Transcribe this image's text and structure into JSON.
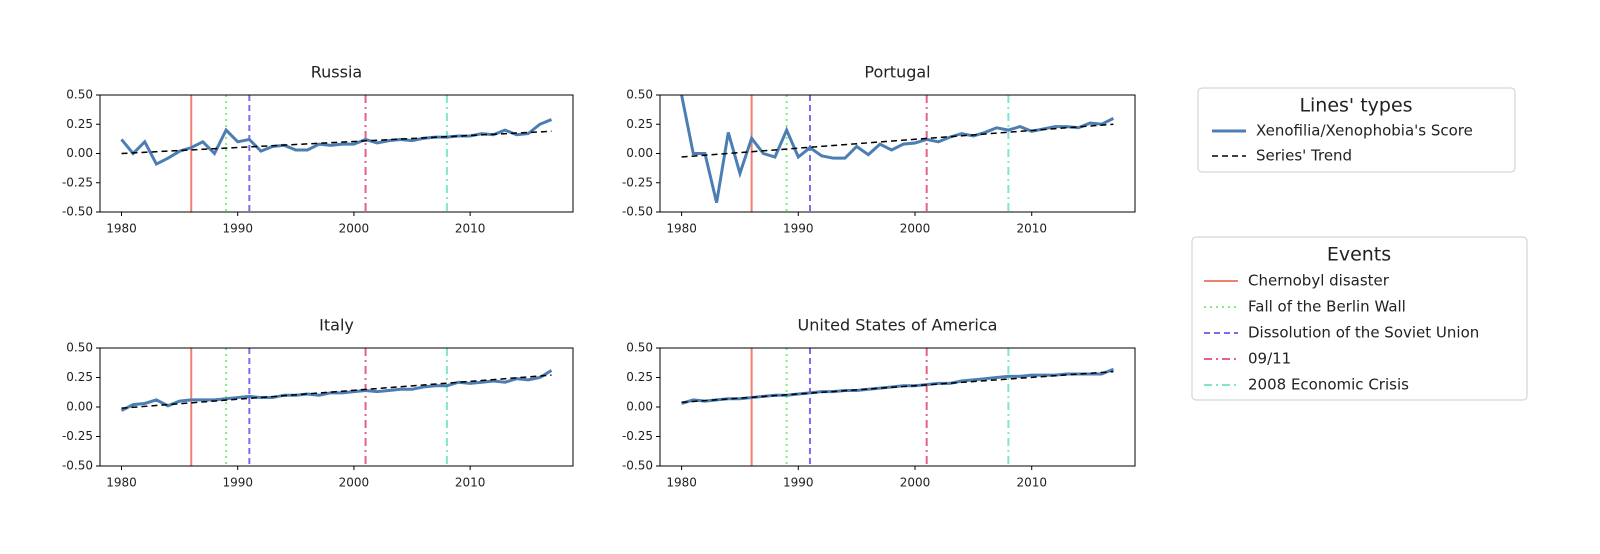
{
  "chart_data": [
    {
      "type": "line",
      "title": "Russia",
      "x": [
        1980,
        1981,
        1982,
        1983,
        1984,
        1985,
        1986,
        1987,
        1988,
        1989,
        1990,
        1991,
        1992,
        1993,
        1994,
        1995,
        1996,
        1997,
        1998,
        1999,
        2000,
        2001,
        2002,
        2003,
        2004,
        2005,
        2006,
        2007,
        2008,
        2009,
        2010,
        2011,
        2012,
        2013,
        2014,
        2015,
        2016,
        2017
      ],
      "series": [
        {
          "name": "Xenofilia/Xenophobia's Score",
          "color": "#4c7eb3",
          "dash": "solid",
          "values": [
            0.12,
            0.0,
            0.1,
            -0.09,
            -0.04,
            0.02,
            0.05,
            0.1,
            0.0,
            0.2,
            0.1,
            0.12,
            0.02,
            0.06,
            0.07,
            0.03,
            0.03,
            0.08,
            0.07,
            0.08,
            0.08,
            0.12,
            0.09,
            0.11,
            0.12,
            0.11,
            0.13,
            0.14,
            0.14,
            0.15,
            0.15,
            0.17,
            0.16,
            0.2,
            0.16,
            0.17,
            0.25,
            0.29
          ]
        },
        {
          "name": "Series' Trend",
          "color": "#000000",
          "dash": "dashed",
          "x": [
            1980,
            2017
          ],
          "values": [
            0.0,
            0.19
          ]
        }
      ],
      "xlim": [
        1978.15,
        2018.85
      ],
      "ylim": [
        -0.5,
        0.5
      ],
      "xticks": [
        1980,
        1990,
        2000,
        2010
      ],
      "yticks": [
        {
          "value": -0.5,
          "label": "-0.50"
        },
        {
          "value": -0.25,
          "label": "-0.25"
        },
        {
          "value": 0,
          "label": "0.00"
        },
        {
          "value": 0.25,
          "label": "0.25"
        },
        {
          "value": 0.5,
          "label": "0.50"
        }
      ]
    },
    {
      "type": "line",
      "title": "Portugal",
      "x": [
        1980,
        1981,
        1982,
        1983,
        1984,
        1985,
        1986,
        1987,
        1988,
        1989,
        1990,
        1991,
        1992,
        1993,
        1994,
        1995,
        1996,
        1997,
        1998,
        1999,
        2000,
        2001,
        2002,
        2003,
        2004,
        2005,
        2006,
        2007,
        2008,
        2009,
        2010,
        2011,
        2012,
        2013,
        2014,
        2015,
        2016,
        2017
      ],
      "series": [
        {
          "name": "Xenofilia/Xenophobia's Score",
          "color": "#4c7eb3",
          "dash": "solid",
          "values": [
            0.5,
            0.0,
            0.0,
            -0.42,
            0.18,
            -0.17,
            0.13,
            0.0,
            -0.03,
            0.2,
            -0.03,
            0.05,
            -0.02,
            -0.04,
            -0.04,
            0.06,
            -0.01,
            0.08,
            0.03,
            0.08,
            0.09,
            0.12,
            0.1,
            0.14,
            0.17,
            0.15,
            0.18,
            0.22,
            0.2,
            0.23,
            0.19,
            0.21,
            0.23,
            0.23,
            0.22,
            0.26,
            0.25,
            0.3
          ]
        },
        {
          "name": "Series' Trend",
          "color": "#000000",
          "dash": "dashed",
          "x": [
            1980,
            2017
          ],
          "values": [
            -0.03,
            0.25
          ]
        }
      ],
      "xlim": [
        1978.15,
        2018.85
      ],
      "ylim": [
        -0.5,
        0.5
      ],
      "xticks": [
        1980,
        1990,
        2000,
        2010
      ],
      "yticks": [
        {
          "value": -0.5,
          "label": "-0.50"
        },
        {
          "value": -0.25,
          "label": "-0.25"
        },
        {
          "value": 0,
          "label": "0.00"
        },
        {
          "value": 0.25,
          "label": "0.25"
        },
        {
          "value": 0.5,
          "label": "0.50"
        }
      ]
    },
    {
      "type": "line",
      "title": "Italy",
      "x": [
        1980,
        1981,
        1982,
        1983,
        1984,
        1985,
        1986,
        1987,
        1988,
        1989,
        1990,
        1991,
        1992,
        1993,
        1994,
        1995,
        1996,
        1997,
        1998,
        1999,
        2000,
        2001,
        2002,
        2003,
        2004,
        2005,
        2006,
        2007,
        2008,
        2009,
        2010,
        2011,
        2012,
        2013,
        2014,
        2015,
        2016,
        2017
      ],
      "series": [
        {
          "name": "Xenofilia/Xenophobia's Score",
          "color": "#4c7eb3",
          "dash": "solid",
          "values": [
            -0.03,
            0.02,
            0.03,
            0.06,
            0.01,
            0.05,
            0.06,
            0.06,
            0.06,
            0.07,
            0.08,
            0.09,
            0.08,
            0.08,
            0.1,
            0.1,
            0.11,
            0.1,
            0.12,
            0.12,
            0.13,
            0.14,
            0.13,
            0.14,
            0.15,
            0.15,
            0.17,
            0.18,
            0.18,
            0.21,
            0.2,
            0.21,
            0.22,
            0.21,
            0.24,
            0.23,
            0.25,
            0.31
          ]
        },
        {
          "name": "Series' Trend",
          "color": "#000000",
          "dash": "dashed",
          "x": [
            1980,
            2017
          ],
          "values": [
            -0.01,
            0.27
          ]
        }
      ],
      "xlim": [
        1978.15,
        2018.85
      ],
      "ylim": [
        -0.5,
        0.5
      ],
      "xticks": [
        1980,
        1990,
        2000,
        2010
      ],
      "yticks": [
        {
          "value": -0.5,
          "label": "-0.50"
        },
        {
          "value": -0.25,
          "label": "-0.25"
        },
        {
          "value": 0,
          "label": "0.00"
        },
        {
          "value": 0.25,
          "label": "0.25"
        },
        {
          "value": 0.5,
          "label": "0.50"
        }
      ]
    },
    {
      "type": "line",
      "title": "United States of America",
      "x": [
        1980,
        1981,
        1982,
        1983,
        1984,
        1985,
        1986,
        1987,
        1988,
        1989,
        1990,
        1991,
        1992,
        1993,
        1994,
        1995,
        1996,
        1997,
        1998,
        1999,
        2000,
        2001,
        2002,
        2003,
        2004,
        2005,
        2006,
        2007,
        2008,
        2009,
        2010,
        2011,
        2012,
        2013,
        2014,
        2015,
        2016,
        2017
      ],
      "series": [
        {
          "name": "Xenofilia/Xenophobia's Score",
          "color": "#4c7eb3",
          "dash": "solid",
          "values": [
            0.03,
            0.06,
            0.05,
            0.06,
            0.07,
            0.07,
            0.08,
            0.09,
            0.1,
            0.1,
            0.11,
            0.12,
            0.13,
            0.13,
            0.14,
            0.14,
            0.15,
            0.16,
            0.17,
            0.18,
            0.18,
            0.19,
            0.2,
            0.2,
            0.22,
            0.23,
            0.24,
            0.25,
            0.26,
            0.26,
            0.27,
            0.27,
            0.27,
            0.28,
            0.28,
            0.28,
            0.28,
            0.32
          ]
        },
        {
          "name": "Series' Trend",
          "color": "#000000",
          "dash": "dashed",
          "x": [
            1980,
            2017
          ],
          "values": [
            0.04,
            0.3
          ]
        }
      ],
      "xlim": [
        1978.15,
        2018.85
      ],
      "ylim": [
        -0.5,
        0.5
      ],
      "xticks": [
        1980,
        1990,
        2000,
        2010
      ],
      "yticks": [
        {
          "value": -0.5,
          "label": "-0.50"
        },
        {
          "value": -0.25,
          "label": "-0.25"
        },
        {
          "value": 0,
          "label": "0.00"
        },
        {
          "value": 0.25,
          "label": "0.25"
        },
        {
          "value": 0.5,
          "label": "0.50"
        }
      ]
    }
  ],
  "events": [
    {
      "name": "Chernobyl disaster",
      "x": 1986,
      "color": "#f08070",
      "dash": "solid"
    },
    {
      "name": "Fall of the Berlin Wall",
      "x": 1989,
      "color": "#7ef07e",
      "dash": "dotted"
    },
    {
      "name": "Dissolution of the Soviet Union",
      "x": 1991,
      "color": "#7b6cf2",
      "dash": "dashed"
    },
    {
      "name": "09/11",
      "x": 2001,
      "color": "#e8608a",
      "dash": "dashdot"
    },
    {
      "name": "2008 Economic Crisis",
      "x": 2008,
      "color": "#7fe8c8",
      "dash": "dashdot"
    }
  ],
  "legends": {
    "lines_title": "Lines' types",
    "events_title": "Events"
  }
}
